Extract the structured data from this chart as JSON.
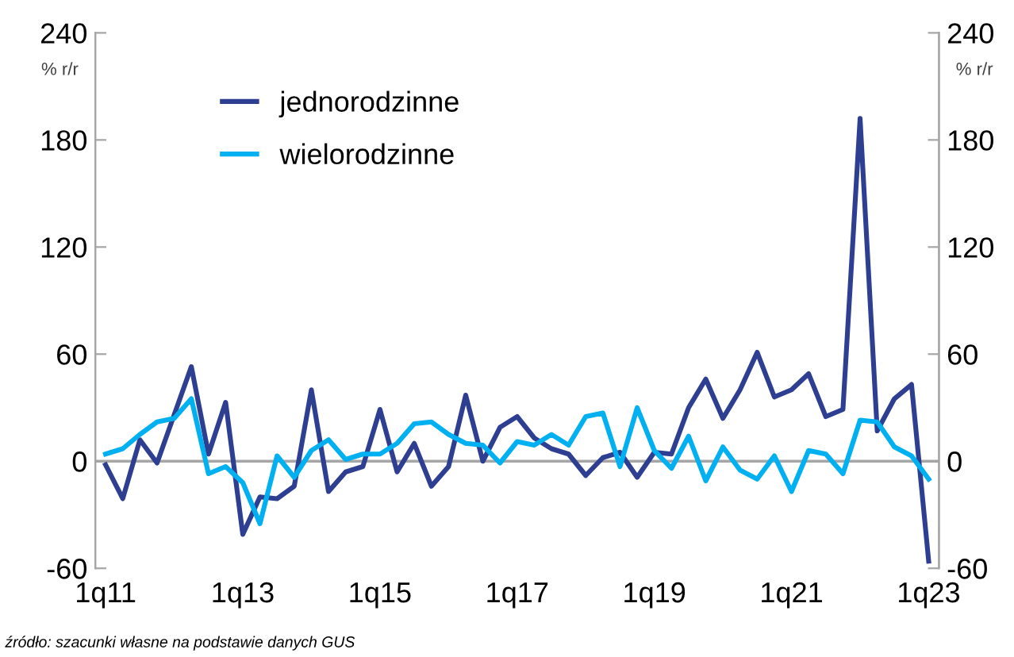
{
  "chart_data": {
    "type": "line",
    "categories": [
      "1q11",
      null,
      null,
      null,
      null,
      null,
      null,
      null,
      "1q13",
      null,
      null,
      null,
      null,
      null,
      null,
      null,
      "1q15",
      null,
      null,
      null,
      null,
      null,
      null,
      null,
      "1q17",
      null,
      null,
      null,
      null,
      null,
      null,
      null,
      "1q19",
      null,
      null,
      null,
      null,
      null,
      null,
      null,
      "1q21",
      null,
      null,
      null,
      null,
      null,
      null,
      null,
      "1q23"
    ],
    "series": [
      {
        "name": "jednorodzinne",
        "color": "#2e3f92",
        "values": [
          -2,
          -21,
          12,
          -1,
          26,
          53,
          4,
          33,
          -41,
          -20,
          -21,
          -14,
          40,
          -17,
          -6,
          -3,
          29,
          -6,
          10,
          -14,
          -3,
          37,
          0,
          19,
          25,
          13,
          7,
          4,
          -8,
          2,
          5,
          -9,
          5,
          4,
          30,
          46,
          24,
          40,
          61,
          36,
          40,
          49,
          25,
          29,
          192,
          17,
          35,
          43,
          -56
        ]
      },
      {
        "name": "wielorodzinne",
        "color": "#00b0f0",
        "values": [
          4,
          7,
          15,
          22,
          24,
          35,
          -7,
          -3,
          -12,
          -35,
          3,
          -9,
          6,
          12,
          1,
          4,
          4,
          10,
          21,
          22,
          15,
          10,
          9,
          -1,
          11,
          9,
          15,
          9,
          25,
          27,
          -3,
          30,
          6,
          -4,
          14,
          -11,
          8,
          -5,
          -10,
          3,
          -17,
          6,
          4,
          -7,
          23,
          22,
          8,
          3,
          -10
        ]
      }
    ],
    "ylim": [
      -60,
      240
    ],
    "yticks": [
      -60,
      0,
      60,
      120,
      180,
      240
    ],
    "y2lim": [
      -60,
      240
    ],
    "y2ticks": [
      -60,
      0,
      60,
      120,
      180,
      240
    ],
    "ylabel": "% r/r",
    "y2label": "% r/r",
    "ref_lines": [
      {
        "axis": "y",
        "value": 0,
        "color": "#a6a6a6"
      }
    ],
    "legend": "top left",
    "grid": false,
    "annotations": [
      "źródło: szacunki własne na podstawie danych GUS"
    ]
  }
}
